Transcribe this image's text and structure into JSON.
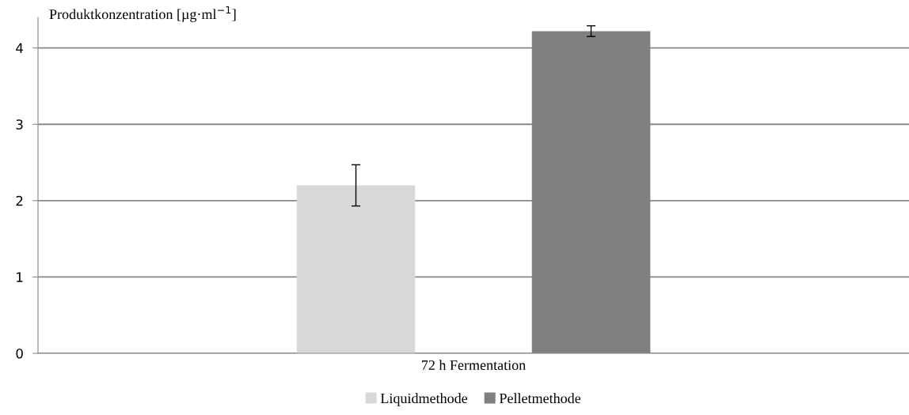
{
  "chart_data": {
    "type": "bar",
    "ylabel": "Produktkonzentration [µg·ml$^{−1}$]",
    "categories": [
      "72 h Fermentation"
    ],
    "series": [
      {
        "name": "Liquidmethode",
        "color": "#d9d9d9",
        "values": [
          2.2
        ],
        "errors": [
          0.27
        ]
      },
      {
        "name": "Pelletmethode",
        "color": "#808080",
        "values": [
          4.22
        ],
        "errors": [
          0.07
        ]
      }
    ],
    "ylim": [
      0,
      4.4
    ],
    "yticks": [
      0,
      1,
      2,
      3,
      4
    ],
    "grid": "y",
    "legend": "bottom"
  }
}
